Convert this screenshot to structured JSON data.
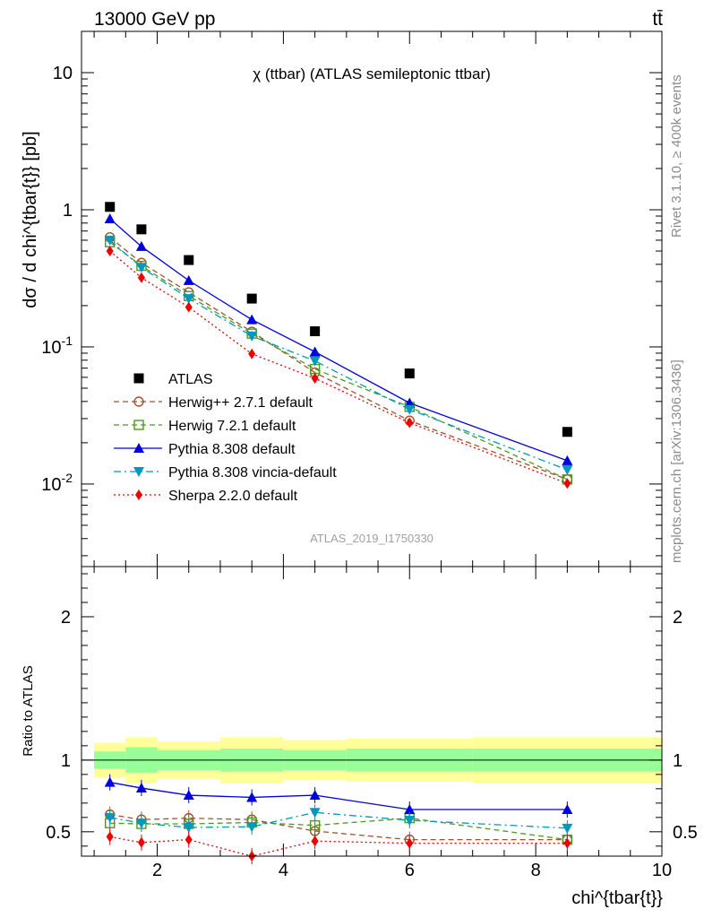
{
  "header": {
    "energy_label": "13000 GeV pp",
    "process_label": "tt̄"
  },
  "side_labels": {
    "rivet": "Rivet 3.1.10, ≥ 400k events",
    "mcplots": "mcplots.cern.ch [arXiv:1306.3436]"
  },
  "chart_data": [
    {
      "type": "scatter",
      "panel": "main",
      "title": "χ (ttbar) (ATLAS semileptonic ttbar)",
      "watermark": "ATLAS_2019_I1750330",
      "ylabel": "dσ / d chi^{tbar{t}} [pb]",
      "yscale": "log",
      "xlim": [
        0.8,
        10.0
      ],
      "ylim": [
        0.0025,
        20
      ],
      "y_tick_labels": [
        "10^{-2}",
        "10^{-1}",
        "1",
        "10"
      ],
      "legend_position": "center-left",
      "bin_edges": [
        1,
        1.5,
        2,
        3,
        4,
        5,
        7,
        10
      ],
      "x": [
        1.25,
        1.75,
        2.5,
        3.5,
        4.5,
        6.0,
        8.5
      ],
      "series": [
        {
          "name": "ATLAS",
          "color": "#000000",
          "style": "data",
          "marker": "square-filled",
          "values": [
            1.05,
            0.72,
            0.43,
            0.225,
            0.13,
            0.064,
            0.024
          ]
        },
        {
          "name": "Herwig++ 2.7.1 default",
          "color": "#a0522d",
          "style": "dashed",
          "marker": "circle-open",
          "values": [
            0.63,
            0.41,
            0.25,
            0.129,
            0.065,
            0.029,
            0.0108
          ]
        },
        {
          "name": "Herwig 7.2.1 default",
          "color": "#4a9a20",
          "style": "dashed",
          "marker": "square-open",
          "values": [
            0.58,
            0.39,
            0.235,
            0.125,
            0.069,
            0.0365,
            0.0108
          ]
        },
        {
          "name": "Pythia 8.308 default",
          "color": "#0000dd",
          "style": "solid",
          "marker": "triangle-up",
          "values": [
            0.86,
            0.54,
            0.305,
            0.158,
            0.092,
            0.039,
            0.0148
          ]
        },
        {
          "name": "Pythia 8.308 vincia-default",
          "color": "#0099bb",
          "style": "dashdot",
          "marker": "triangle-down",
          "values": [
            0.6,
            0.38,
            0.225,
            0.12,
            0.079,
            0.035,
            0.0127
          ]
        },
        {
          "name": "Sherpa 2.2.0 default",
          "color": "#ee0000",
          "style": "dotted",
          "marker": "diamond",
          "values": [
            0.5,
            0.32,
            0.195,
            0.089,
            0.059,
            0.028,
            0.0101
          ]
        }
      ]
    },
    {
      "type": "scatter",
      "panel": "ratio",
      "ylabel": "Ratio to ATLAS",
      "xlabel": "chi^{tbar{t}}",
      "xlim": [
        0.8,
        10.0
      ],
      "ylim": [
        0.33,
        2.35
      ],
      "y_ticks": [
        0.5,
        1,
        2
      ],
      "x_ticks": [
        2,
        4,
        6,
        8,
        10
      ],
      "bin_edges": [
        1,
        1.5,
        2,
        3,
        4,
        5,
        7,
        10
      ],
      "bands": {
        "inner": [
          [
            0.94,
            1.06
          ],
          [
            0.91,
            1.09
          ],
          [
            0.93,
            1.07
          ],
          [
            0.92,
            1.08
          ],
          [
            0.93,
            1.07
          ],
          [
            0.92,
            1.08
          ],
          [
            0.92,
            1.08
          ]
        ],
        "outer": [
          [
            0.88,
            1.12
          ],
          [
            0.84,
            1.16
          ],
          [
            0.87,
            1.13
          ],
          [
            0.84,
            1.16
          ],
          [
            0.86,
            1.14
          ],
          [
            0.85,
            1.15
          ],
          [
            0.84,
            1.16
          ]
        ]
      },
      "x": [
        1.25,
        1.75,
        2.5,
        3.5,
        4.5,
        6.0,
        8.5
      ],
      "series": [
        {
          "name": "Herwig++ 2.7.1 default",
          "values": [
            0.62,
            0.585,
            0.595,
            0.585,
            0.505,
            0.445,
            0.445
          ]
        },
        {
          "name": "Herwig 7.2.1 default",
          "values": [
            0.56,
            0.555,
            0.555,
            0.565,
            0.545,
            0.595,
            0.445
          ]
        },
        {
          "name": "Pythia 8.308 default",
          "values": [
            0.845,
            0.805,
            0.755,
            0.74,
            0.755,
            0.655,
            0.655
          ]
        },
        {
          "name": "Pythia 8.308 vincia-default",
          "values": [
            0.6,
            0.56,
            0.53,
            0.535,
            0.635,
            0.58,
            0.525
          ]
        },
        {
          "name": "Sherpa 2.2.0 default",
          "values": [
            0.465,
            0.425,
            0.445,
            0.33,
            0.435,
            0.42,
            0.42
          ]
        }
      ]
    }
  ]
}
